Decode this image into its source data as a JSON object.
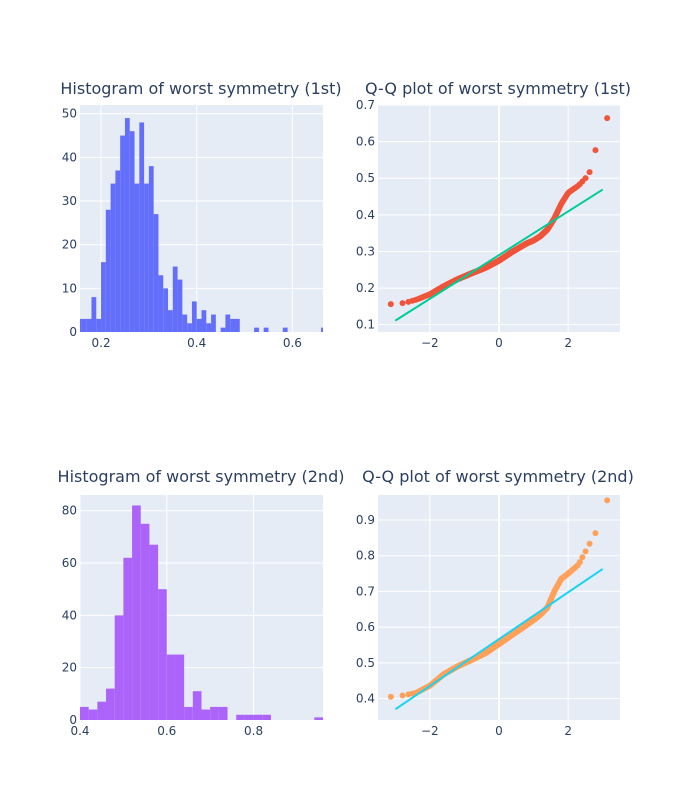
{
  "colors": {
    "plot_bg": "#E5ECF6",
    "grid": "#ffffff",
    "text": "#2a3f5f",
    "hist1": "#636EFA",
    "hist2": "#AB63FA",
    "qq1_points": "#EF553B",
    "qq1_line": "#00CC96",
    "qq2_points": "#FFA15A",
    "qq2_line": "#19D3F3"
  },
  "chart_data": [
    {
      "id": "hist1",
      "type": "bar",
      "title": "Histogram of worst symmetry (1st)",
      "x_range": [
        0.156,
        0.664
      ],
      "ylim": [
        0,
        52
      ],
      "xticks": [
        0.2,
        0.4,
        0.6
      ],
      "yticks": [
        0,
        10,
        20,
        30,
        40,
        50
      ],
      "xtick_labels": [
        "0.2",
        "0.4",
        "0.6"
      ],
      "ytick_labels": [
        "0",
        "10",
        "20",
        "30",
        "40",
        "50"
      ],
      "bin_start": 0.15,
      "bin_width": 0.01,
      "counts": [
        3,
        3,
        3,
        8,
        3,
        16,
        28,
        34,
        37,
        45,
        49,
        46,
        34,
        48,
        34,
        38,
        27,
        13,
        10,
        5,
        15,
        12,
        4,
        2,
        7,
        3,
        5,
        2,
        4,
        0,
        1,
        4,
        3,
        3,
        0,
        0,
        0,
        1,
        0,
        1,
        0,
        0,
        0,
        1,
        0,
        0,
        0,
        0,
        0,
        0,
        0,
        1
      ]
    },
    {
      "id": "qq1",
      "type": "scatter",
      "title": "Q-Q plot of worst symmetry (1st)",
      "x_range": [
        -3.5,
        3.5
      ],
      "y_range": [
        0.08,
        0.7
      ],
      "xticks": [
        -2,
        0,
        2
      ],
      "yticks": [
        0.1,
        0.2,
        0.3,
        0.4,
        0.5,
        0.6,
        0.7
      ],
      "xtick_labels": [
        "−2",
        "0",
        "2"
      ],
      "ytick_labels": [
        "0.1",
        "0.2",
        "0.3",
        "0.4",
        "0.5",
        "0.6",
        "0.7"
      ],
      "line": {
        "x": [
          -3.0,
          3.0
        ],
        "y": [
          0.111,
          0.469
        ]
      },
      "quantile_profile": {
        "z": [
          -3.0,
          -2.7,
          -2.4,
          -2.0,
          -1.6,
          -1.2,
          -0.8,
          -0.4,
          0.0,
          0.4,
          0.8,
          1.0,
          1.2,
          1.4,
          1.6,
          1.8,
          2.0,
          2.3,
          2.6,
          2.75,
          3.0
        ],
        "y": [
          0.156,
          0.16,
          0.168,
          0.183,
          0.205,
          0.224,
          0.24,
          0.255,
          0.275,
          0.3,
          0.322,
          0.33,
          0.342,
          0.36,
          0.39,
          0.43,
          0.46,
          0.48,
          0.51,
          0.56,
          0.664
        ]
      },
      "n_points": 569
    },
    {
      "id": "hist2",
      "type": "bar",
      "title": "Histogram of worst symmetry (2nd)",
      "x_range": [
        0.4,
        0.96
      ],
      "ylim": [
        0,
        86
      ],
      "xticks": [
        0.4,
        0.6,
        0.8
      ],
      "yticks": [
        0,
        20,
        40,
        60,
        80
      ],
      "xtick_labels": [
        "0.4",
        "0.6",
        "0.8"
      ],
      "ytick_labels": [
        "0",
        "20",
        "40",
        "60",
        "80"
      ],
      "bin_start": 0.4,
      "bin_width": 0.02,
      "counts": [
        5,
        4,
        7,
        12,
        40,
        62,
        82,
        75,
        67,
        50,
        25,
        25,
        5,
        11,
        4,
        5,
        5,
        0,
        2,
        2,
        2,
        2,
        0,
        0,
        0,
        0,
        0,
        1
      ]
    },
    {
      "id": "qq2",
      "type": "scatter",
      "title": "Q-Q plot of worst symmetry (2nd)",
      "x_range": [
        -3.5,
        3.5
      ],
      "y_range": [
        0.34,
        0.97
      ],
      "xticks": [
        -2,
        0,
        2
      ],
      "yticks": [
        0.4,
        0.5,
        0.6,
        0.7,
        0.8,
        0.9
      ],
      "xtick_labels": [
        "−2",
        "0",
        "2"
      ],
      "ytick_labels": [
        "0.4",
        "0.5",
        "0.6",
        "0.7",
        "0.8",
        "0.9"
      ],
      "line": {
        "x": [
          -3.0,
          3.0
        ],
        "y": [
          0.37,
          0.763
        ]
      },
      "quantile_profile": {
        "z": [
          -3.0,
          -2.7,
          -2.4,
          -2.0,
          -1.6,
          -1.2,
          -0.8,
          -0.4,
          0.0,
          0.4,
          0.8,
          1.0,
          1.2,
          1.4,
          1.6,
          1.8,
          2.0,
          2.3,
          2.6,
          2.8,
          3.0
        ],
        "y": [
          0.405,
          0.41,
          0.416,
          0.436,
          0.468,
          0.49,
          0.508,
          0.527,
          0.553,
          0.58,
          0.606,
          0.62,
          0.635,
          0.655,
          0.7,
          0.735,
          0.75,
          0.775,
          0.83,
          0.865,
          0.955
        ]
      },
      "n_points": 569
    }
  ]
}
